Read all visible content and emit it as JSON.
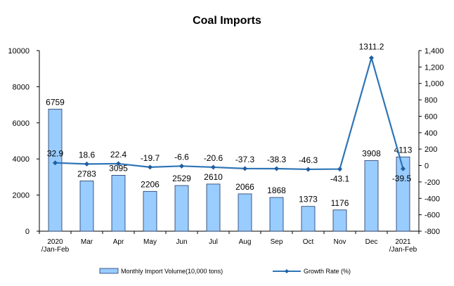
{
  "chart_data": {
    "type": "bar",
    "title": "Coal Imports",
    "categories": [
      [
        "2020",
        "/Jan-Feb"
      ],
      [
        "Mar"
      ],
      [
        "Apr"
      ],
      [
        "May"
      ],
      [
        "Jun"
      ],
      [
        "Jul"
      ],
      [
        "Aug"
      ],
      [
        "Sep"
      ],
      [
        "Oct"
      ],
      [
        "Nov"
      ],
      [
        "Dec"
      ],
      [
        "2021",
        "/Jan-Feb"
      ]
    ],
    "series": [
      {
        "name": "Monthly Import Volume(10,000 tons)",
        "type": "bar",
        "axis": "left",
        "color": "#99ccff",
        "values": [
          6759,
          2783,
          3095,
          2206,
          2529,
          2610,
          2066,
          1868,
          1373,
          1176,
          3908,
          4113
        ]
      },
      {
        "name": "Growth Rate (%)",
        "type": "line",
        "axis": "right",
        "color": "#2e75b6",
        "values": [
          32.9,
          18.6,
          22.4,
          -19.7,
          -6.6,
          -20.6,
          -37.3,
          -38.3,
          -46.3,
          -43.1,
          1311.2,
          -39.5
        ]
      }
    ],
    "y_left": {
      "min": 0,
      "max": 10000,
      "ticks": [
        0,
        2000,
        4000,
        6000,
        8000,
        10000
      ],
      "tick_labels": [
        "0",
        "2000",
        "4000",
        "6000",
        "8000",
        "10000"
      ]
    },
    "y_right": {
      "min": -800,
      "max": 1400,
      "ticks": [
        -800,
        -600,
        -400,
        -200,
        0,
        200,
        400,
        600,
        800,
        1000,
        1200,
        1400
      ],
      "tick_labels": [
        "-800",
        "-600",
        "-400",
        "-200",
        "0",
        "200",
        "400",
        "600",
        "800",
        "1,000",
        "1,200",
        "1,400"
      ]
    },
    "grid": false,
    "legend_position": "bottom"
  }
}
